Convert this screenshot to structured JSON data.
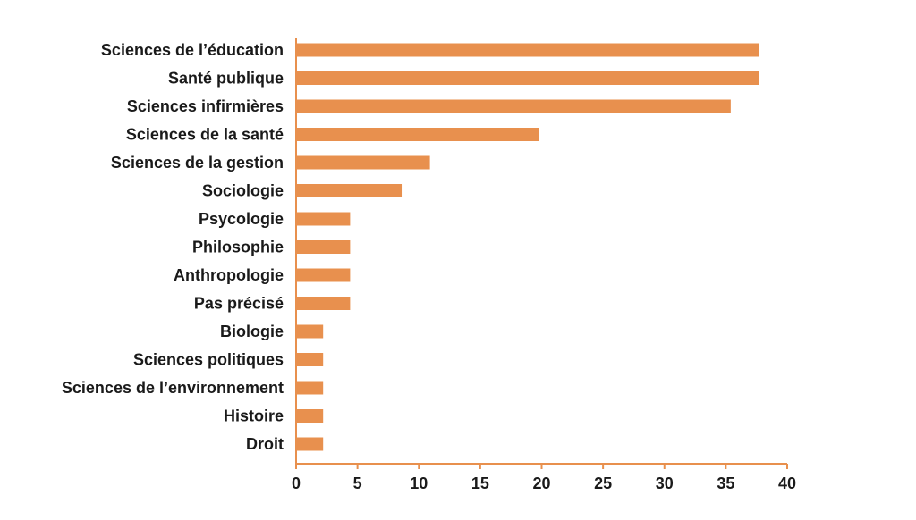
{
  "chart_data": {
    "type": "bar",
    "orientation": "horizontal",
    "categories": [
      "Sciences de l’éducation",
      "Santé publique",
      "Sciences infirmières",
      "Sciences de la santé",
      "Sciences de la gestion",
      "Sociologie",
      "Psycologie",
      "Philosophie",
      "Anthropologie",
      "Pas précisé",
      "Biologie",
      "Sciences politiques",
      "Sciences de l’environnement",
      "Histoire",
      "Droit"
    ],
    "values": [
      37.7,
      37.7,
      35.4,
      19.8,
      10.9,
      8.6,
      4.4,
      4.4,
      4.4,
      4.4,
      2.2,
      2.2,
      2.2,
      2.2,
      2.2
    ],
    "xlim": [
      0,
      40
    ],
    "xticks": [
      "0",
      "5",
      "10",
      "15",
      "20",
      "25",
      "30",
      "35",
      "40"
    ],
    "title": "",
    "xlabel": "",
    "ylabel": "",
    "grid": false,
    "legend": "none",
    "colors": {
      "bar": "#E8904E",
      "axis": "#E8904E",
      "text": "#1a1a1a"
    }
  }
}
